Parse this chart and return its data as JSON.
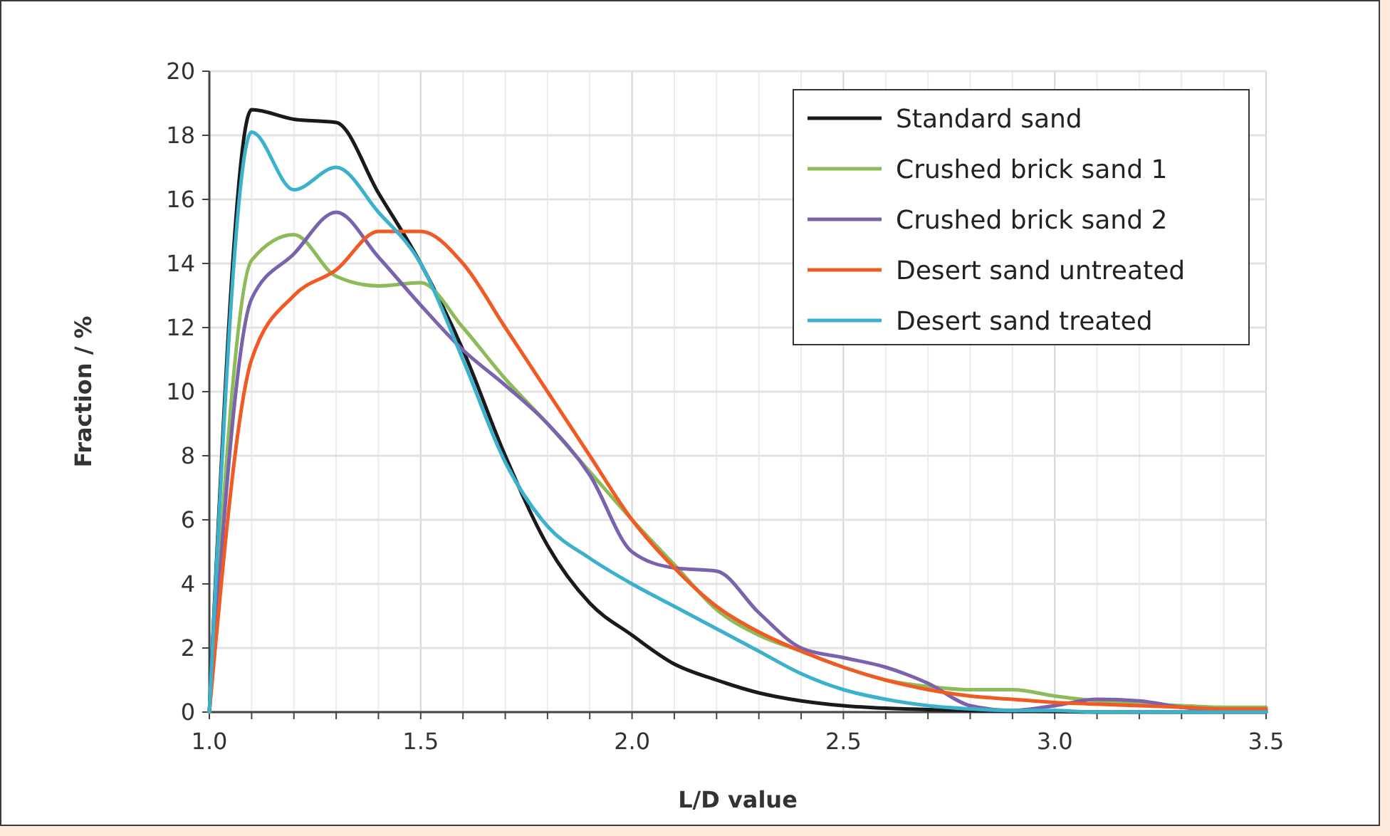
{
  "chart_data": {
    "type": "line",
    "xlabel": "L/D value",
    "ylabel": "Fraction / %",
    "x": [
      1.0,
      1.1,
      1.2,
      1.3,
      1.4,
      1.5,
      1.6,
      1.7,
      1.8,
      1.9,
      2.0,
      2.1,
      2.2,
      2.3,
      2.4,
      2.5,
      2.6,
      2.7,
      2.8,
      2.9,
      3.0,
      3.1,
      3.2,
      3.3,
      3.4,
      3.5
    ],
    "series": [
      {
        "name": "Standard sand",
        "color": "#1a1a1a",
        "values": [
          0,
          18.8,
          18.5,
          18.4,
          16.2,
          14.0,
          11.3,
          8.0,
          5.2,
          3.4,
          2.4,
          1.5,
          1.0,
          0.6,
          0.35,
          0.2,
          0.12,
          0.08,
          0.05,
          0.03,
          0.02,
          0,
          0,
          0,
          0,
          0
        ]
      },
      {
        "name": "Crushed brick sand 1",
        "color": "#8dbb5a",
        "values": [
          0,
          14.1,
          14.9,
          13.6,
          13.3,
          13.4,
          12.0,
          10.4,
          9.0,
          7.5,
          6.0,
          4.6,
          3.2,
          2.4,
          1.9,
          1.4,
          1.0,
          0.8,
          0.7,
          0.7,
          0.5,
          0.35,
          0.25,
          0.2,
          0.15,
          0.15
        ]
      },
      {
        "name": "Crushed brick sand 2",
        "color": "#7b62ad",
        "values": [
          0,
          12.9,
          14.3,
          15.6,
          14.2,
          12.7,
          11.3,
          10.2,
          9.0,
          7.4,
          5.0,
          4.5,
          4.4,
          3.1,
          2.0,
          1.7,
          1.4,
          0.9,
          0.2,
          0.05,
          0.2,
          0.4,
          0.35,
          0.15,
          0.05,
          0.05
        ]
      },
      {
        "name": "Desert sand untreated",
        "color": "#f05a24",
        "values": [
          0,
          11.0,
          13.0,
          13.8,
          15.0,
          15.0,
          14.0,
          12.0,
          10.0,
          8.0,
          6.0,
          4.5,
          3.3,
          2.5,
          1.9,
          1.4,
          1.0,
          0.7,
          0.5,
          0.4,
          0.3,
          0.25,
          0.2,
          0.15,
          0.1,
          0.1
        ]
      },
      {
        "name": "Desert sand treated",
        "color": "#3bb1cc",
        "values": [
          0,
          18.1,
          16.3,
          17.0,
          15.6,
          14.0,
          11.0,
          7.8,
          5.8,
          4.8,
          4.0,
          3.3,
          2.6,
          1.9,
          1.2,
          0.7,
          0.4,
          0.2,
          0.1,
          0.05,
          0.05,
          0,
          0,
          0,
          0,
          0
        ]
      }
    ],
    "xlim": [
      1.0,
      3.5
    ],
    "xticks": [
      {
        "value": 1.0,
        "label": "1.0"
      },
      {
        "value": 1.1,
        "label": null
      },
      {
        "value": 1.2,
        "label": null
      },
      {
        "value": 1.3,
        "label": null
      },
      {
        "value": 1.4,
        "label": null
      },
      1.5,
      {
        "value": 1.6,
        "label": null
      },
      {
        "value": 1.7,
        "label": null
      },
      {
        "value": 1.8,
        "label": null
      },
      {
        "value": 1.9,
        "label": null
      },
      {
        "value": 2.0,
        "label": "2.0"
      },
      {
        "value": 2.1,
        "label": null
      },
      {
        "value": 2.2,
        "label": null
      },
      {
        "value": 2.3,
        "label": null
      },
      {
        "value": 2.4,
        "label": null
      },
      2.5,
      {
        "value": 2.6,
        "label": null
      },
      {
        "value": 2.7,
        "label": null
      },
      {
        "value": 2.8,
        "label": null
      },
      {
        "value": 2.9,
        "label": null
      },
      {
        "value": 3.0,
        "label": "3.0"
      },
      {
        "value": 3.1,
        "label": null
      },
      {
        "value": 3.2,
        "label": null
      },
      {
        "value": 3.3,
        "label": null
      },
      {
        "value": 3.4,
        "label": null
      },
      3.5
    ],
    "ylim": [
      0,
      20
    ],
    "yticks": [
      0,
      2,
      4,
      6,
      8,
      10,
      12,
      14,
      16,
      18,
      20
    ],
    "grid": true,
    "legend": "top right",
    "marker": "none",
    "line_style": "solid"
  }
}
